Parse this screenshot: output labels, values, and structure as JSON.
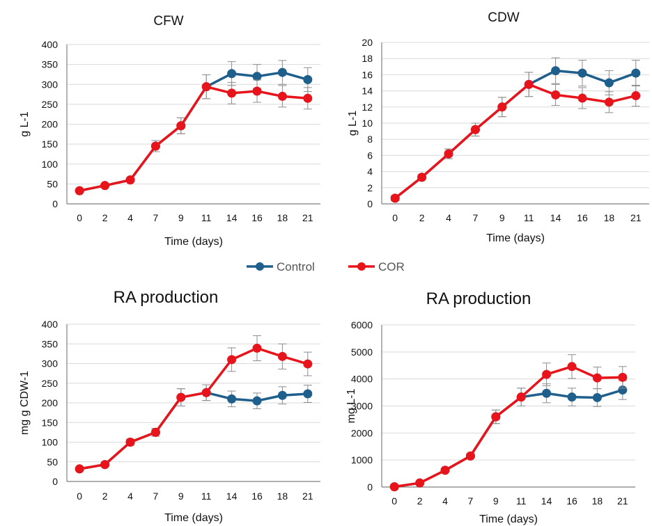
{
  "colors": {
    "Control": "#1f5f8b",
    "COR": "#e8141b",
    "grid": "#d9d9d9",
    "axis": "#7f7f7f",
    "errorbar": "#8c8c8c"
  },
  "legend": {
    "position": "center",
    "entries": [
      {
        "name": "Control",
        "color": "#1f5f8b"
      },
      {
        "name": "COR",
        "color": "#e8141b"
      }
    ]
  },
  "chart_data": [
    {
      "type": "line",
      "title": "CFW",
      "xlabel": "Time (days)",
      "ylabel": "g L-1",
      "categories": [
        "0",
        "2",
        "4",
        "7",
        "9",
        "11",
        "14",
        "16",
        "18",
        "21"
      ],
      "ylim": [
        0,
        400
      ],
      "yticks": [
        0,
        50,
        100,
        150,
        200,
        250,
        300,
        350,
        400
      ],
      "grid": true,
      "series": [
        {
          "name": "Control",
          "values": [
            33,
            46,
            60,
            145,
            196,
            294,
            327,
            320,
            330,
            312
          ],
          "errors": [
            4,
            4,
            4,
            14,
            20,
            30,
            30,
            30,
            30,
            30
          ]
        },
        {
          "name": "COR",
          "values": [
            33,
            46,
            60,
            145,
            196,
            294,
            278,
            283,
            270,
            265
          ],
          "errors": [
            4,
            4,
            4,
            14,
            20,
            30,
            27,
            28,
            27,
            27
          ]
        }
      ]
    },
    {
      "type": "line",
      "title": "CDW",
      "xlabel": "Time (days)",
      "ylabel": "g L-1",
      "categories": [
        "0",
        "2",
        "4",
        "7",
        "9",
        "11",
        "14",
        "16",
        "18",
        "21"
      ],
      "ylim": [
        0,
        20
      ],
      "yticks": [
        0,
        2,
        4,
        6,
        8,
        10,
        12,
        14,
        16,
        18,
        20
      ],
      "grid": true,
      "series": [
        {
          "name": "Control",
          "values": [
            0.7,
            3.3,
            6.2,
            9.2,
            12.0,
            14.8,
            16.5,
            16.2,
            15.0,
            16.2
          ],
          "errors": [
            0.3,
            0.3,
            0.6,
            0.8,
            1.2,
            1.5,
            1.6,
            1.6,
            1.5,
            1.6
          ]
        },
        {
          "name": "COR",
          "values": [
            0.7,
            3.3,
            6.2,
            9.2,
            12.0,
            14.8,
            13.5,
            13.1,
            12.6,
            13.4
          ],
          "errors": [
            0.3,
            0.3,
            0.6,
            0.8,
            1.2,
            1.5,
            1.3,
            1.3,
            1.3,
            1.3
          ]
        }
      ]
    },
    {
      "type": "line",
      "title": "RA production",
      "xlabel": "Time (days)",
      "ylabel": "mg g CDW-1",
      "categories": [
        "0",
        "2",
        "4",
        "7",
        "9",
        "11",
        "14",
        "16",
        "18",
        "21"
      ],
      "ylim": [
        0,
        400
      ],
      "yticks": [
        0,
        50,
        100,
        150,
        200,
        250,
        300,
        350,
        400
      ],
      "grid": true,
      "series": [
        {
          "name": "Control",
          "values": [
            32,
            43,
            100,
            125,
            214,
            226,
            210,
            205,
            219,
            223
          ],
          "errors": [
            4,
            4,
            8,
            10,
            22,
            20,
            20,
            20,
            22,
            22
          ]
        },
        {
          "name": "COR",
          "values": [
            32,
            43,
            100,
            125,
            214,
            226,
            310,
            339,
            318,
            299
          ],
          "errors": [
            4,
            4,
            8,
            10,
            22,
            20,
            30,
            32,
            32,
            30
          ]
        }
      ]
    },
    {
      "type": "line",
      "title": "RA production",
      "xlabel": "Time (days)",
      "ylabel": "mg L-1",
      "categories": [
        "0",
        "2",
        "4",
        "7",
        "9",
        "11",
        "14",
        "16",
        "18",
        "21"
      ],
      "ylim": [
        0,
        6000
      ],
      "yticks": [
        0,
        1000,
        2000,
        3000,
        4000,
        5000,
        6000
      ],
      "grid": true,
      "series": [
        {
          "name": "Control",
          "values": [
            10,
            150,
            620,
            1150,
            2600,
            3330,
            3470,
            3330,
            3310,
            3590
          ],
          "errors": [
            20,
            40,
            60,
            80,
            250,
            330,
            350,
            330,
            330,
            350
          ]
        },
        {
          "name": "COR",
          "values": [
            10,
            150,
            620,
            1150,
            2600,
            3330,
            4170,
            4460,
            4040,
            4060
          ],
          "errors": [
            20,
            40,
            60,
            80,
            250,
            330,
            420,
            440,
            400,
            400
          ]
        }
      ]
    }
  ]
}
